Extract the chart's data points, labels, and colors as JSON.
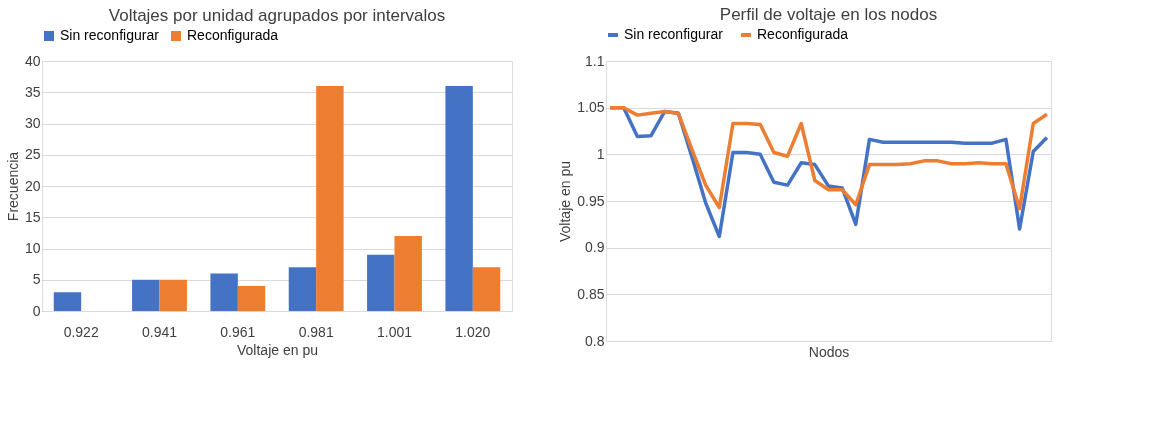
{
  "chart_data": [
    {
      "type": "bar",
      "title": "Voltajes por unidad agrupados por intervalos",
      "xlabel": "Voltaje en pu",
      "ylabel": "Frecuencia",
      "categories": [
        "0.922",
        "0.941",
        "0.961",
        "0.981",
        "1.001",
        "1.020"
      ],
      "series": [
        {
          "name": "Sin reconfigurar",
          "color": "#4472c4",
          "values": [
            3,
            5,
            6,
            7,
            9,
            36
          ]
        },
        {
          "name": "Reconfigurada",
          "color": "#ed7d31",
          "values": [
            0,
            5,
            4,
            36,
            12,
            7
          ]
        }
      ],
      "ylim": [
        0,
        40
      ],
      "yticks": [
        0,
        5,
        10,
        15,
        20,
        25,
        30,
        35,
        40
      ],
      "grid": "y",
      "legend": "top"
    },
    {
      "type": "line",
      "title": "Perfil de voltaje en los nodos",
      "xlabel": "Nodos",
      "ylabel": "Voltaje en pu",
      "categories": [
        null,
        null,
        null,
        null,
        null,
        null,
        null,
        null,
        null,
        null,
        null,
        null,
        null,
        null,
        null,
        null,
        null,
        null,
        null,
        null,
        null,
        null,
        null,
        null,
        null,
        null,
        null,
        null,
        null,
        null,
        null,
        null,
        null
      ],
      "series": [
        {
          "name": "Sin reconfigurar",
          "color": "#4472c4",
          "values": [
            1.05,
            1.05,
            1.019,
            1.02,
            1.046,
            1.044,
            0.997,
            0.948,
            0.912,
            1.002,
            1.002,
            1.0,
            0.97,
            0.967,
            0.991,
            0.989,
            0.966,
            0.964,
            0.925,
            1.016,
            1.013,
            1.013,
            1.013,
            1.013,
            1.013,
            1.013,
            1.012,
            1.012,
            1.012,
            1.016,
            0.92,
            1.003,
            1.018
          ]
        },
        {
          "name": "Reconfigurada",
          "color": "#ed7d31",
          "values": [
            1.05,
            1.05,
            1.042,
            1.044,
            1.046,
            1.044,
            1.005,
            0.967,
            0.943,
            1.033,
            1.033,
            1.032,
            1.002,
            0.998,
            1.033,
            0.972,
            0.962,
            0.962,
            0.946,
            0.989,
            0.989,
            0.989,
            0.99,
            0.993,
            0.993,
            0.99,
            0.99,
            0.991,
            0.99,
            0.99,
            0.942,
            1.033,
            1.043
          ]
        }
      ],
      "ylim": [
        0.8,
        1.1
      ],
      "yticks": [
        0.8,
        0.85,
        0.9,
        0.95,
        1,
        1.05,
        1.1
      ],
      "grid": "y",
      "legend": "top",
      "tick_labels": "y",
      "marker": "none",
      "line_style": "solid"
    }
  ]
}
